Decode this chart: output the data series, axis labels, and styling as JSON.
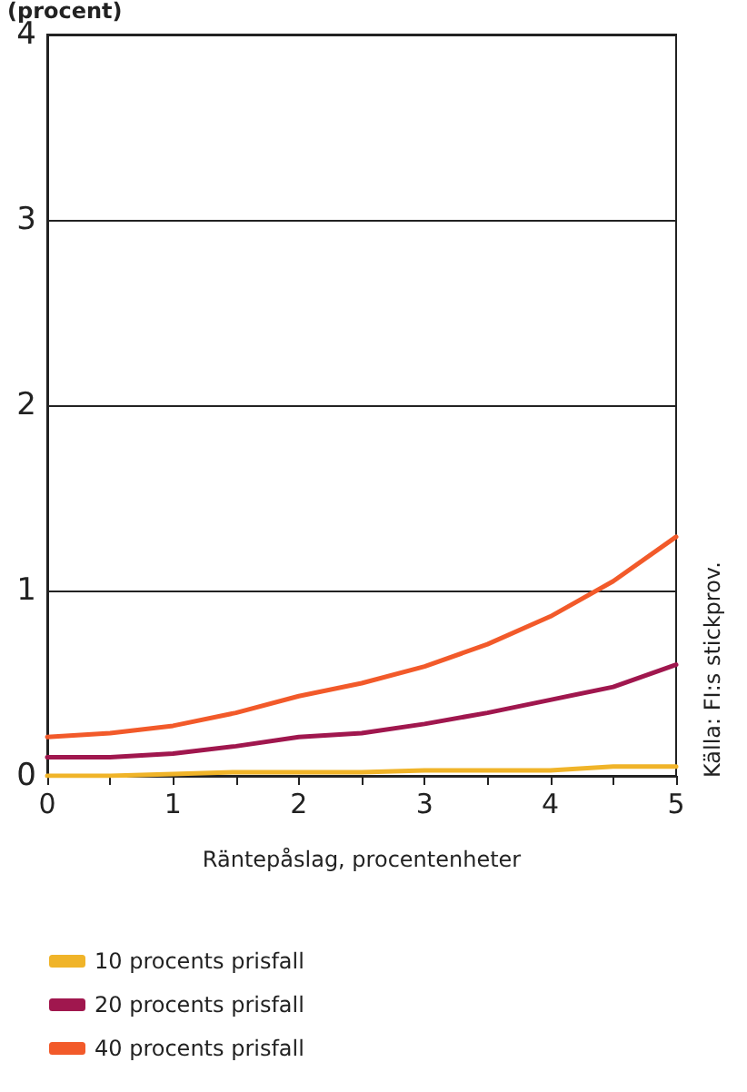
{
  "chart_data": {
    "type": "line",
    "ylabel": "(procent)",
    "xlabel": "Räntepåslag, procentenheter",
    "annotations": [
      "Källa: FI:s stickprov."
    ],
    "x": [
      0,
      0.5,
      1,
      1.5,
      2,
      2.5,
      3,
      3.5,
      4,
      4.5,
      5
    ],
    "series": [
      {
        "name": "10 procents prisfall",
        "color": "#f0b429",
        "values": [
          0.0,
          0.0,
          0.01,
          0.02,
          0.02,
          0.02,
          0.03,
          0.03,
          0.03,
          0.05,
          0.05
        ]
      },
      {
        "name": "20 procents prisfall",
        "color": "#a0174e",
        "values": [
          0.1,
          0.1,
          0.12,
          0.16,
          0.21,
          0.23,
          0.28,
          0.34,
          0.41,
          0.48,
          0.6
        ]
      },
      {
        "name": "40 procents prisfall",
        "color": "#f25a2a",
        "values": [
          0.21,
          0.23,
          0.27,
          0.34,
          0.43,
          0.5,
          0.59,
          0.71,
          0.86,
          1.05,
          1.29
        ]
      }
    ],
    "xlim": [
      0,
      5
    ],
    "xticks": [
      0,
      {
        "value": 0.5,
        "label": null
      },
      1,
      {
        "value": 1.5,
        "label": null
      },
      2,
      {
        "value": 2.5,
        "label": null
      },
      3,
      {
        "value": 3.5,
        "label": null
      },
      4,
      {
        "value": 4.5,
        "label": null
      },
      5
    ],
    "ylim": [
      0,
      4
    ],
    "yticks": [
      0,
      1,
      2,
      3,
      4
    ],
    "grid": "y",
    "legend": "bottom",
    "marker": "none",
    "line_style": "solid"
  }
}
